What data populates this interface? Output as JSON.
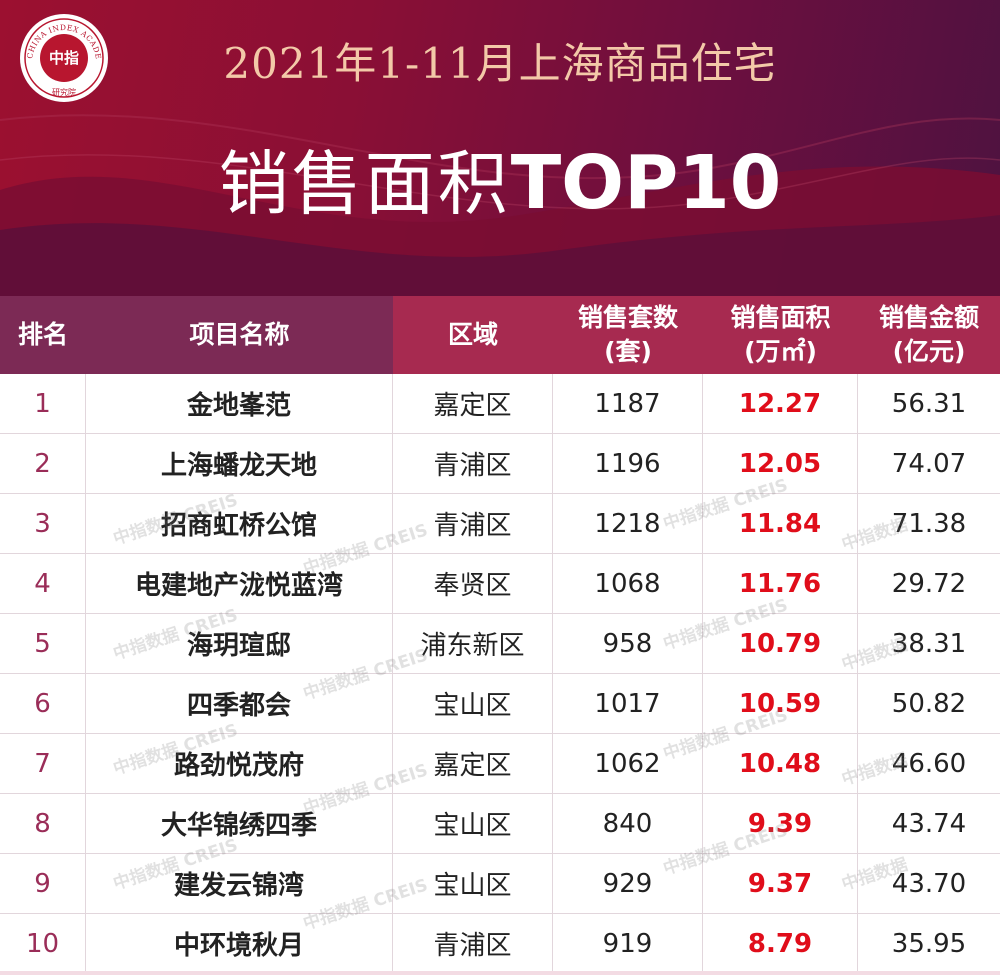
{
  "header": {
    "title_line1": "2021年1-11月上海商品住宅",
    "title_line2_cn": "销售面积",
    "title_line2_en": "TOP10"
  },
  "logo": {
    "center_text": "中指",
    "ring_text": "CHINA INDEX ACADEMY",
    "bottom_text": "研究院",
    "colors": {
      "fill": "#ffffff",
      "ring": "#b8162f"
    }
  },
  "watermark": {
    "text_cn": "中指数据",
    "text_en": "CREIS"
  },
  "table": {
    "columns": [
      {
        "line1": "排名",
        "line2": ""
      },
      {
        "line1": "项目名称",
        "line2": ""
      },
      {
        "line1": "区域",
        "line2": ""
      },
      {
        "line1": "销售套数",
        "line2": "(套)"
      },
      {
        "line1": "销售面积",
        "line2": "(万㎡)"
      },
      {
        "line1": "销售金额",
        "line2": "(亿元)"
      }
    ],
    "rows": [
      {
        "rank": "1",
        "name": "金地峯范",
        "district": "嘉定区",
        "units": "1187",
        "area": "12.27",
        "amount": "56.31"
      },
      {
        "rank": "2",
        "name": "上海蟠龙天地",
        "district": "青浦区",
        "units": "1196",
        "area": "12.05",
        "amount": "74.07"
      },
      {
        "rank": "3",
        "name": "招商虹桥公馆",
        "district": "青浦区",
        "units": "1218",
        "area": "11.84",
        "amount": "71.38"
      },
      {
        "rank": "4",
        "name": "电建地产泷悦蓝湾",
        "district": "奉贤区",
        "units": "1068",
        "area": "11.76",
        "amount": "29.72"
      },
      {
        "rank": "5",
        "name": "海玥瑄邸",
        "district": "浦东新区",
        "units": "958",
        "area": "10.79",
        "amount": "38.31"
      },
      {
        "rank": "6",
        "name": "四季都会",
        "district": "宝山区",
        "units": "1017",
        "area": "10.59",
        "amount": "50.82"
      },
      {
        "rank": "7",
        "name": "路劲悦茂府",
        "district": "嘉定区",
        "units": "1062",
        "area": "10.48",
        "amount": "46.60"
      },
      {
        "rank": "8",
        "name": "大华锦绣四季",
        "district": "宝山区",
        "units": "840",
        "area": "9.39",
        "amount": "43.74"
      },
      {
        "rank": "9",
        "name": "建发云锦湾",
        "district": "宝山区",
        "units": "929",
        "area": "9.37",
        "amount": "43.70"
      },
      {
        "rank": "10",
        "name": "中环境秋月",
        "district": "青浦区",
        "units": "919",
        "area": "8.79",
        "amount": "35.95"
      }
    ]
  },
  "colors": {
    "banner_start": "#9c1030",
    "banner_end": "#4e1240",
    "title_gold": "#f3c9a8",
    "header_purple": "#7c2a55",
    "header_red": "#a72a50",
    "rank_color": "#9a2d58",
    "area_highlight": "#e00d1a"
  }
}
